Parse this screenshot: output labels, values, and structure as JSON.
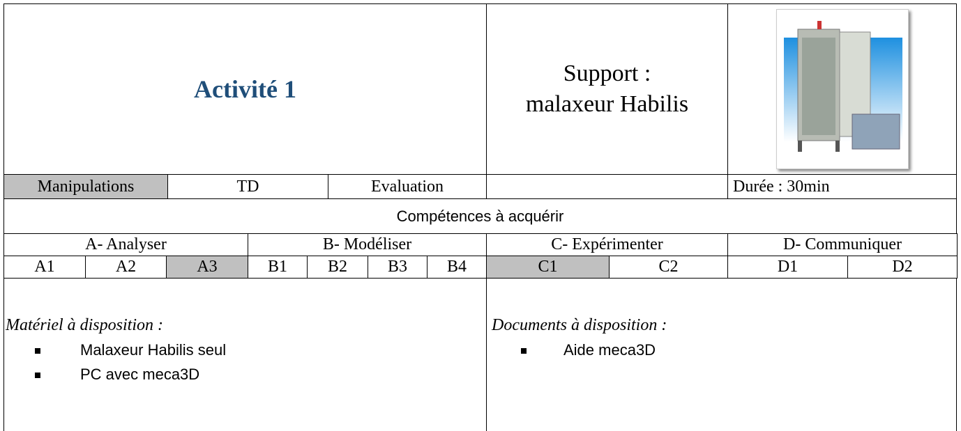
{
  "header": {
    "title": "Activité 1",
    "support": [
      "Support :",
      "malaxeur Habilis"
    ],
    "duration": "Durée : 30min"
  },
  "modes": [
    {
      "label": "Manipulations",
      "selected": true
    },
    {
      "label": "TD",
      "selected": false
    },
    {
      "label": "Evaluation",
      "selected": false
    }
  ],
  "competences": {
    "title": "Compétences à acquérir",
    "groups": [
      "A- Analyser",
      "B- Modéliser",
      "C- Expérimenter",
      "D- Communiquer"
    ],
    "skills": [
      {
        "label": "A1",
        "selected": false
      },
      {
        "label": "A2",
        "selected": false
      },
      {
        "label": "A3",
        "selected": true
      },
      {
        "label": "B1",
        "selected": false
      },
      {
        "label": "B2",
        "selected": false
      },
      {
        "label": "B3",
        "selected": false
      },
      {
        "label": "B4",
        "selected": false
      },
      {
        "label": "C1",
        "selected": true
      },
      {
        "label": "C2",
        "selected": false
      },
      {
        "label": "D1",
        "selected": false
      },
      {
        "label": "D2",
        "selected": false
      }
    ]
  },
  "materiel": {
    "title": "Matériel à disposition :",
    "items": [
      "Malaxeur Habilis seul",
      "PC avec meca3D"
    ]
  },
  "documents": {
    "title": "Documents à disposition :",
    "items": [
      "Aide meca3D"
    ]
  }
}
